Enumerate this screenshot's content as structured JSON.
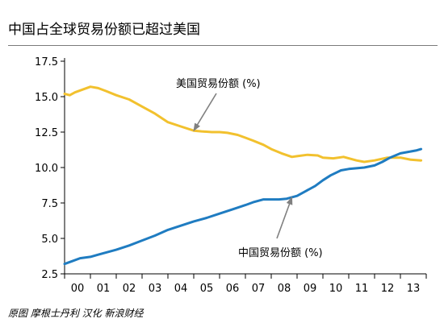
{
  "title": "中国占全球贸易份额已超过美国",
  "source": "原图 摩根士丹利 汉化 新浪财经",
  "chart_data": {
    "type": "line",
    "title": "中国占全球贸易份额已超过美国",
    "xlabel": "",
    "ylabel": "",
    "ylim": [
      2.5,
      17.5
    ],
    "yticks": [
      2.5,
      5.0,
      7.5,
      10.0,
      12.5,
      15.0,
      17.5
    ],
    "ytick_labels": [
      "2.5",
      "5.0",
      "7.5",
      "10.0",
      "12.5",
      "15.0",
      "17.5"
    ],
    "xlim": [
      2000,
      2014
    ],
    "xtick_labels": [
      "00",
      "01",
      "02",
      "03",
      "04",
      "05",
      "06",
      "07",
      "08",
      "09",
      "10",
      "11",
      "12",
      "13"
    ],
    "grid": false,
    "series": [
      {
        "name": "美国贸易份额 (%)",
        "color": "#f2c12e",
        "x": [
          2000.0,
          2000.2,
          2000.4,
          2000.7,
          2001.0,
          2001.3,
          2001.6,
          2002.0,
          2002.5,
          2003.0,
          2003.5,
          2004.0,
          2004.5,
          2005.0,
          2005.3,
          2005.7,
          2006.0,
          2006.3,
          2006.7,
          2007.0,
          2007.3,
          2007.7,
          2008.0,
          2008.4,
          2008.8,
          2009.0,
          2009.4,
          2009.8,
          2010.0,
          2010.4,
          2010.8,
          2011.0,
          2011.3,
          2011.6,
          2012.0,
          2012.5,
          2013.0,
          2013.4,
          2013.8
        ],
        "values": [
          15.2,
          15.1,
          15.3,
          15.5,
          15.7,
          15.6,
          15.4,
          15.1,
          14.8,
          14.3,
          13.8,
          13.2,
          12.9,
          12.6,
          12.55,
          12.5,
          12.5,
          12.45,
          12.3,
          12.1,
          11.9,
          11.6,
          11.3,
          11.0,
          10.75,
          10.8,
          10.9,
          10.85,
          10.7,
          10.65,
          10.75,
          10.65,
          10.5,
          10.4,
          10.5,
          10.7,
          10.7,
          10.55,
          10.5
        ]
      },
      {
        "name": "中国贸易份额 (%)",
        "color": "#1f7cc1",
        "x": [
          2000.0,
          2000.3,
          2000.6,
          2001.0,
          2001.3,
          2001.6,
          2002.0,
          2002.5,
          2003.0,
          2003.5,
          2004.0,
          2004.5,
          2005.0,
          2005.5,
          2006.0,
          2006.5,
          2007.0,
          2007.3,
          2007.7,
          2008.0,
          2008.3,
          2008.6,
          2009.0,
          2009.3,
          2009.7,
          2010.0,
          2010.3,
          2010.7,
          2011.0,
          2011.3,
          2011.6,
          2012.0,
          2012.3,
          2012.6,
          2013.0,
          2013.3,
          2013.6,
          2013.8
        ],
        "values": [
          3.2,
          3.4,
          3.6,
          3.7,
          3.85,
          4.0,
          4.2,
          4.5,
          4.85,
          5.2,
          5.6,
          5.9,
          6.2,
          6.45,
          6.75,
          7.05,
          7.35,
          7.55,
          7.75,
          7.75,
          7.75,
          7.8,
          8.0,
          8.3,
          8.7,
          9.1,
          9.45,
          9.8,
          9.9,
          9.95,
          10.0,
          10.15,
          10.4,
          10.7,
          11.0,
          11.1,
          11.2,
          11.3
        ]
      }
    ],
    "annotations": [
      {
        "text": "美国贸易份额 (%)",
        "target_x": 2005.0,
        "target_y": 12.6
      },
      {
        "text": "中国贸易份额 (%)",
        "target_x": 2008.8,
        "target_y": 7.9
      }
    ]
  }
}
